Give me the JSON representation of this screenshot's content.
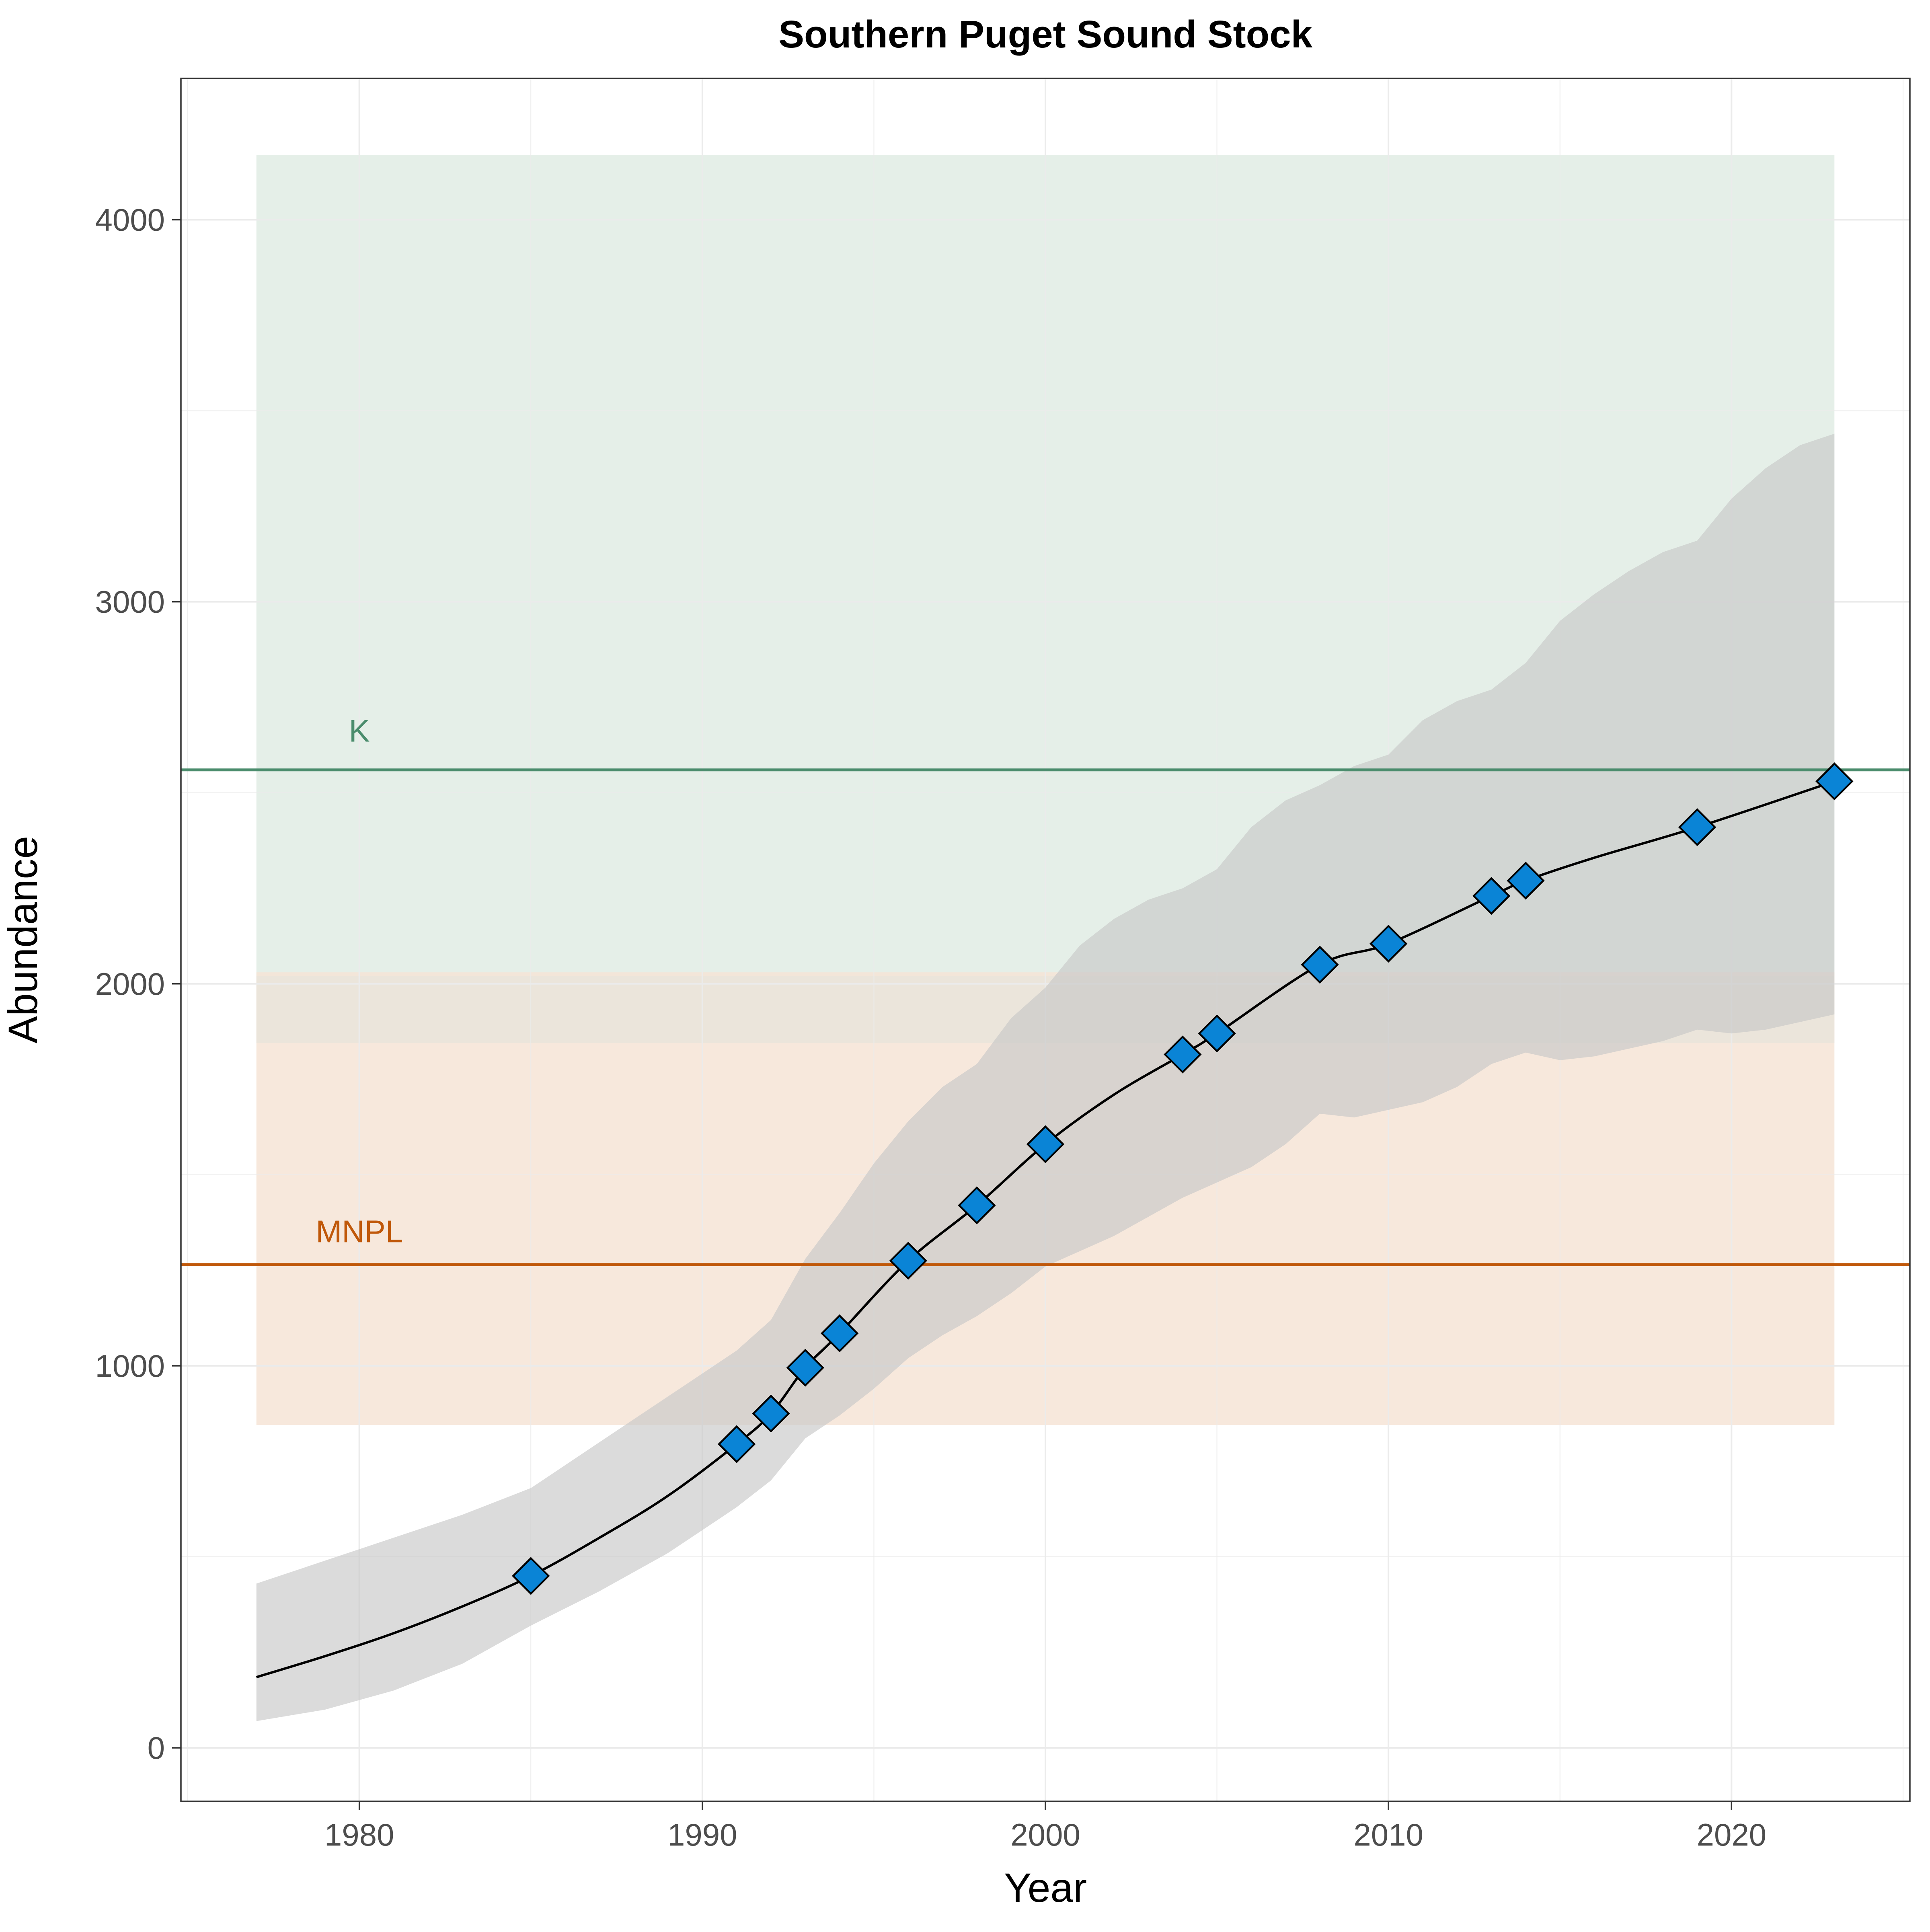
{
  "chart_data": {
    "type": "line",
    "title": "Southern Puget Sound Stock",
    "xlabel": "Year",
    "ylabel": "Abundance",
    "xlim": [
      1974.8,
      2025.2
    ],
    "ylim": [
      -140,
      4370
    ],
    "x_ticks": [
      1980,
      1990,
      2000,
      2010,
      2020
    ],
    "y_ticks": [
      0,
      1000,
      2000,
      3000,
      4000
    ],
    "grid": true,
    "colors": {
      "line": "#000000",
      "marker_fill": "#0a84d6",
      "marker_edge": "#000000",
      "ribbon": "#c8c8c8",
      "k_color": "#4a8c6c",
      "k_band": "#e0ece4",
      "mnpl_color": "#c0580a",
      "mnpl_band": "#f6e4d6",
      "grid": "#ebebeb",
      "tick_label": "#4d4d4d"
    },
    "bands": [
      {
        "name": "K",
        "x_range": [
          1977,
          2023
        ],
        "y_range": [
          2020,
          4170
        ]
      },
      {
        "name": "MNPL",
        "x_range": [
          1977,
          2023
        ],
        "y_range": [
          845,
          2030
        ]
      },
      {
        "name": "overlap",
        "x_range": [
          1977,
          2023
        ],
        "y_range": [
          1845,
          2020
        ]
      }
    ],
    "reference_lines": [
      {
        "label": "K",
        "y": 2560,
        "label_x": 1980,
        "label_y": 2660
      },
      {
        "label": "MNPL",
        "y": 1265,
        "label_x": 1980,
        "label_y": 1350
      }
    ],
    "series": [
      {
        "role": "trajectory",
        "x": [
          1977,
          1979,
          1981,
          1983,
          1985,
          1987,
          1989,
          1991,
          1992,
          1993,
          1994,
          1996,
          1998,
          2000,
          2002,
          2004,
          2005,
          2008,
          2010,
          2013,
          2014,
          2016,
          2019,
          2023
        ],
        "values": [
          185,
          240,
          300,
          370,
          450,
          550,
          660,
          795,
          875,
          995,
          1085,
          1275,
          1420,
          1580,
          1710,
          1815,
          1870,
          2050,
          2105,
          2230,
          2270,
          2330,
          2410,
          2530
        ]
      },
      {
        "role": "ribbon-upper",
        "x": [
          1977,
          1979,
          1981,
          1983,
          1985,
          1987,
          1989,
          1991,
          1992,
          1993,
          1994,
          1995,
          1996,
          1997,
          1998,
          1999,
          2000,
          2001,
          2002,
          2003,
          2004,
          2005,
          2006,
          2007,
          2008,
          2009,
          2010,
          2011,
          2012,
          2013,
          2014,
          2015,
          2016,
          2017,
          2018,
          2019,
          2020,
          2021,
          2022,
          2023
        ],
        "values": [
          430,
          490,
          550,
          610,
          680,
          800,
          920,
          1040,
          1120,
          1280,
          1400,
          1530,
          1640,
          1730,
          1790,
          1910,
          1990,
          2100,
          2170,
          2220,
          2250,
          2300,
          2410,
          2480,
          2520,
          2570,
          2600,
          2690,
          2740,
          2770,
          2840,
          2950,
          3020,
          3080,
          3130,
          3160,
          3270,
          3350,
          3410,
          3440
        ]
      },
      {
        "role": "ribbon-lower",
        "x": [
          1977,
          1979,
          1981,
          1983,
          1985,
          1987,
          1989,
          1991,
          1992,
          1993,
          1994,
          1995,
          1996,
          1997,
          1998,
          1999,
          2000,
          2001,
          2002,
          2003,
          2004,
          2005,
          2006,
          2007,
          2008,
          2009,
          2010,
          2011,
          2012,
          2013,
          2014,
          2015,
          2016,
          2017,
          2018,
          2019,
          2020,
          2021,
          2022,
          2023
        ],
        "values": [
          70,
          100,
          150,
          220,
          320,
          410,
          510,
          630,
          700,
          810,
          870,
          940,
          1020,
          1080,
          1130,
          1190,
          1260,
          1300,
          1340,
          1390,
          1440,
          1480,
          1520,
          1580,
          1660,
          1650,
          1670,
          1690,
          1730,
          1790,
          1820,
          1800,
          1810,
          1830,
          1850,
          1880,
          1870,
          1880,
          1900,
          1920
        ]
      },
      {
        "role": "observations",
        "x": [
          1985,
          1991,
          1992,
          1993,
          1994,
          1996,
          1998,
          2000,
          2004,
          2005,
          2008,
          2010,
          2013,
          2014,
          2019,
          2023
        ],
        "values": [
          450,
          795,
          875,
          995,
          1085,
          1275,
          1420,
          1580,
          1815,
          1870,
          2050,
          2105,
          2230,
          2270,
          2410,
          2530
        ]
      }
    ]
  }
}
